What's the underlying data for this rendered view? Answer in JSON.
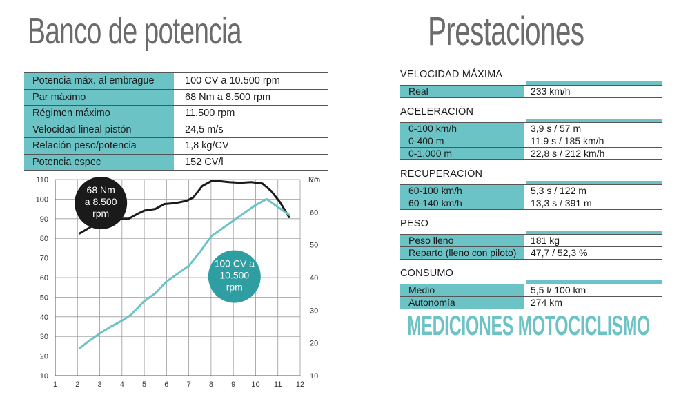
{
  "titles": {
    "left": "Banco de potencia",
    "right": "Prestaciones"
  },
  "specs": [
    {
      "label": "Potencia máx. al embrague",
      "value": "100 CV a 10.500 rpm"
    },
    {
      "label": "Par máximo",
      "value": "68 Nm a 8.500 rpm"
    },
    {
      "label": "Régimen máximo",
      "value": "11.500 rpm"
    },
    {
      "label": "Velocidad lineal pistón",
      "value": "24,5 m/s"
    },
    {
      "label": "Relación peso/potencia",
      "value": "1,8 kg/CV"
    },
    {
      "label": "Potencia espec",
      "value": "152 CV/l"
    }
  ],
  "chart_data": {
    "type": "line",
    "title": "",
    "xlabel": "",
    "ylabel": "",
    "y2label": "Nm",
    "xlim": [
      1,
      12
    ],
    "ylim": [
      10,
      110
    ],
    "y2lim": [
      10,
      70
    ],
    "xticks": [
      "1",
      "2",
      "3",
      "4",
      "5",
      "6",
      "7",
      "8",
      "9",
      "10",
      "11",
      "12"
    ],
    "yticks": [
      "10",
      "20",
      "30",
      "40",
      "50",
      "60",
      "70",
      "80",
      "90",
      "100",
      "110"
    ],
    "y2ticks": [
      "10",
      "20",
      "30",
      "40",
      "50",
      "60",
      "70"
    ],
    "grid": true,
    "series": [
      {
        "axis": "right",
        "color": "#1a1a1a",
        "x": [
          2.1,
          2.6,
          3.2,
          3.8,
          4.3,
          4.7,
          5.0,
          5.5,
          5.9,
          6.4,
          6.9,
          7.2,
          7.6,
          8.0,
          8.4,
          8.8,
          9.3,
          9.8,
          10.3,
          10.7,
          11.1,
          11.5
        ],
        "y": [
          53.5,
          55.5,
          58,
          58,
          58,
          59.5,
          60.5,
          61,
          62.5,
          62.8,
          63.5,
          64.5,
          68,
          69.5,
          69.5,
          69.2,
          69,
          69.2,
          68.8,
          66.5,
          63,
          58.5
        ]
      },
      {
        "axis": "left",
        "color": "#6cc3c6",
        "x": [
          2.1,
          2.5,
          3.0,
          3.5,
          4.0,
          4.4,
          5.0,
          5.5,
          6.0,
          6.5,
          7.0,
          7.5,
          8.0,
          8.5,
          9.0,
          9.5,
          10.0,
          10.5,
          11.0,
          11.5
        ],
        "y": [
          24,
          27.5,
          31.5,
          35,
          38,
          41,
          48,
          52,
          58,
          62,
          66,
          73,
          81,
          85,
          89,
          93,
          97,
          100,
          96,
          92
        ]
      }
    ],
    "annotations": [
      {
        "text": [
          "68 Nm",
          "a 8.500",
          "rpm"
        ],
        "x": 3.05,
        "y": 98,
        "fill": "#1a1a1a",
        "color": "#ffffff"
      },
      {
        "text": [
          "100 CV a",
          "10.500",
          "rpm"
        ],
        "x": 9.05,
        "y": 60.5,
        "fill": "#2f9ea2",
        "color": "#ffffff"
      }
    ]
  },
  "performance": [
    {
      "title": "VELOCIDAD MÁXIMA",
      "rows": [
        {
          "label": "Real",
          "value": "233 km/h"
        }
      ]
    },
    {
      "title": "ACELERACIÓN",
      "rows": [
        {
          "label": "0-100 km/h",
          "value": "3,9 s / 57 m"
        },
        {
          "label": "0-400 m",
          "value": "11,9 s / 185 km/h"
        },
        {
          "label": "0-1.000 m",
          "value": "22,8 s / 212 km/h"
        }
      ]
    },
    {
      "title": "RECUPERACIÓN",
      "rows": [
        {
          "label": "60-100 km/h",
          "value": "5,3 s / 122 m"
        },
        {
          "label": "60-140 km/h",
          "value": "13,3 s / 391 m"
        }
      ]
    },
    {
      "title": "PESO",
      "rows": [
        {
          "label": "Peso lleno",
          "value": "181 kg"
        },
        {
          "label": "Reparto (lleno con piloto)",
          "value": "47,7 / 52,3 %"
        }
      ]
    },
    {
      "title": "CONSUMO",
      "rows": [
        {
          "label": "Medio",
          "value": "5,5 l/ 100 km"
        },
        {
          "label": "Autonomía",
          "value": "274 km"
        }
      ]
    }
  ],
  "brand": "MEDICIONES MOTOCICLISMO"
}
